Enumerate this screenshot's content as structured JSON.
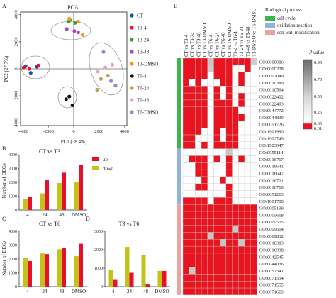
{
  "colors": {
    "up": "#e8112d",
    "down": "#c4c21a",
    "cell_cycle": "#3cb54a",
    "oxidation_reaction": "#8fb4dc",
    "cell_wall": "#eda2a2",
    "sig": "#e8141f",
    "nonsig_white": "#ffffff"
  },
  "panel_A": {
    "letter": "A",
    "chart_data": {
      "type": "scatter",
      "title": "PCA",
      "xlabel": "PC1 (38.4%)",
      "ylabel": "PC2 (27.7%)",
      "xlim": [
        -4200,
        4200
      ],
      "ylim": [
        -4200,
        4200
      ],
      "x_ticks": [
        "-4000",
        "-2000",
        "0",
        "2000",
        "4000"
      ],
      "y_ticks": [
        "-4000",
        "-2000",
        "0",
        "2000",
        "4000"
      ],
      "series": [
        {
          "name": "CT",
          "color": "#1f4fa8",
          "points": [
            [
              -3800,
              200
            ],
            [
              -2900,
              150
            ],
            [
              -3400,
              -300
            ]
          ]
        },
        {
          "name": "T3-4",
          "color": "#e8112d",
          "points": [
            [
              -3950,
              100
            ],
            [
              -3500,
              0
            ],
            [
              -2800,
              250
            ]
          ]
        },
        {
          "name": "T3-24",
          "color": "#2ea043",
          "points": [
            [
              -400,
              3500
            ],
            [
              100,
              3400
            ],
            [
              -300,
              3600
            ]
          ]
        },
        {
          "name": "T3-48",
          "color": "#9b4dbe",
          "points": [
            [
              -550,
              2950
            ],
            [
              350,
              2700
            ],
            [
              50,
              2800
            ]
          ]
        },
        {
          "name": "T3-DMSO",
          "color": "#f39a13",
          "points": [
            [
              700,
              2500
            ],
            [
              -350,
              3700
            ],
            [
              350,
              3500
            ]
          ]
        },
        {
          "name": "T6-4",
          "color": "#111111",
          "points": [
            [
              -600,
              -2250
            ],
            [
              -350,
              -2050
            ],
            [
              -100,
              -2700
            ]
          ]
        },
        {
          "name": "T6-24",
          "color": "#c4a15a",
          "points": [
            [
              2150,
              -750
            ],
            [
              1850,
              -1550
            ],
            [
              2700,
              -500
            ]
          ]
        },
        {
          "name": "T6-48",
          "color": "#f2a1b3",
          "points": [
            [
              2500,
              100
            ],
            [
              3050,
              300
            ],
            [
              1900,
              -200
            ]
          ]
        },
        {
          "name": "T6-DMSO",
          "color": "#9a8ac7",
          "points": [
            [
              2350,
              1250
            ],
            [
              2950,
              -900
            ],
            [
              3300,
              -1250
            ]
          ]
        }
      ]
    }
  },
  "panel_B": {
    "letter": "B",
    "chart_data": {
      "type": "bar",
      "title": "CT vs T3",
      "categories": [
        "4",
        "24",
        "48",
        "DMSO"
      ],
      "series": [
        {
          "name": "up",
          "values": [
            950,
            2150,
            2700,
            3250
          ]
        },
        {
          "name": "down",
          "values": [
            800,
            1200,
            1950,
            2000
          ]
        }
      ],
      "ylabel": "Number of DEGs",
      "ylim": [
        0,
        4000
      ],
      "y_ticks": [
        "0",
        "1000",
        "2000",
        "3000",
        "4000"
      ]
    }
  },
  "panel_C": {
    "letter": "C",
    "chart_data": {
      "type": "bar",
      "title": "CT vs T6",
      "categories": [
        "4",
        "24",
        "48",
        "DMSO"
      ],
      "series": [
        {
          "name": "up",
          "values": [
            1850,
            2350,
            2800,
            3100
          ]
        },
        {
          "name": "down",
          "values": [
            2100,
            2400,
            2700,
            2200
          ]
        }
      ],
      "ylabel": "Number of DEGs",
      "ylim": [
        0,
        4000
      ],
      "y_ticks": [
        "0",
        "1000",
        "2000",
        "3000",
        "4000"
      ]
    }
  },
  "panel_D": {
    "letter": "D",
    "chart_data": {
      "type": "bar",
      "title": "T3 vs T6",
      "categories": [
        "4",
        "24",
        "48",
        "DMSO"
      ],
      "series": [
        {
          "name": "up",
          "values": [
            400,
            750,
            150,
            850
          ]
        },
        {
          "name": "down",
          "values": [
            900,
            2150,
            1700,
            850
          ]
        }
      ],
      "ylim": [
        0,
        3000
      ],
      "y_ticks": [
        "0",
        "1000",
        "2000",
        "3000"
      ]
    }
  },
  "panel_E": {
    "letter": "E",
    "chart_data": {
      "type": "heatmap",
      "columns": [
        "CT vs T3-4",
        "CT vs T3-24",
        "CT vs T3-48",
        "CT vs T3-DMSO",
        "CT vs T6-4",
        "CT vs T6-24",
        "CT vs T6-48",
        "CT vs T6-DMSO",
        "T3-4 vs T6-4",
        "T3-24 vs T6-24",
        "T3-48 vs T6-48",
        "T3-DMSO vs T6-DMSO"
      ],
      "rows": [
        "GO:0000086",
        "GO:0000278",
        "GO:0007049",
        "GO:0010389",
        "GO:0010564",
        "GO:0022402",
        "GO:0022403",
        "GO:0044772",
        "GO:0044839",
        "GO:0051726",
        "GO:1901990",
        "GO:1902749",
        "GO:1903047",
        "GO:0055114",
        "GO:0016717",
        "GO:0016641",
        "GO:0016647",
        "GO:0016701",
        "GO:0016710",
        "GO:0051213",
        "GO:1901700",
        "GO:0005199",
        "GO:0005618",
        "GO:0009505",
        "GO:0009664",
        "GO:0009832",
        "GO:0010383",
        "GO:0016998",
        "GO:0042545",
        "GO:0044036",
        "GO:0052541",
        "GO:0071554",
        "GO:0071555",
        "GO:0071669"
      ],
      "row_groups": [
        {
          "name": "cell cycle",
          "color_key": "cell_cycle",
          "count": 13
        },
        {
          "name": "oxidation reaction",
          "color_key": "oxidation_reaction",
          "count": 8
        },
        {
          "name": "cell wall modification",
          "color_key": "cell_wall",
          "count": 13
        }
      ],
      "legend_title": "Biological process",
      "colorbar_title": "P value",
      "colorbar_ticks": [
        "0.95",
        "0.75",
        "0.50",
        "0.25",
        "0.05",
        "0.01"
      ],
      "p_values": [
        [
          0.01,
          0.01,
          0.01,
          0.01,
          0.6,
          0.01,
          0.01,
          0.01,
          0.01,
          0.01,
          0.01,
          0.7
        ],
        [
          0.01,
          0.01,
          0.01,
          0.01,
          0.7,
          0.01,
          0.01,
          0.01,
          0.95,
          0.95,
          0.01,
          0.95
        ],
        [
          0.01,
          0.01,
          0.01,
          0.01,
          0.95,
          0.01,
          0.01,
          0.01,
          0.95,
          0.01,
          0.95,
          0.95
        ],
        [
          0.01,
          0.95,
          0.01,
          0.95,
          0.95,
          0.95,
          0.01,
          0.01,
          0.95,
          0.01,
          0.95,
          0.95
        ],
        [
          0.01,
          0.01,
          0.01,
          0.01,
          0.95,
          0.01,
          0.95,
          0.01,
          0.95,
          0.95,
          0.95,
          0.95
        ],
        [
          0.01,
          0.01,
          0.01,
          0.01,
          0.95,
          0.01,
          0.95,
          0.01,
          0.95,
          0.01,
          0.95,
          0.95
        ],
        [
          0.01,
          0.01,
          0.01,
          0.01,
          0.95,
          0.01,
          0.01,
          0.01,
          0.95,
          0.01,
          0.95,
          0.95
        ],
        [
          0.01,
          0.01,
          0.01,
          0.01,
          0.95,
          0.01,
          0.01,
          0.01,
          0.01,
          0.95,
          0.95,
          0.95
        ],
        [
          0.01,
          0.01,
          0.01,
          0.01,
          0.95,
          0.01,
          0.01,
          0.01,
          0.01,
          0.01,
          0.95,
          0.95
        ],
        [
          0.01,
          0.01,
          0.01,
          0.01,
          0.95,
          0.01,
          0.01,
          0.01,
          0.01,
          0.95,
          0.95,
          0.95
        ],
        [
          0.01,
          0.01,
          0.01,
          0.95,
          0.95,
          0.01,
          0.95,
          0.01,
          0.01,
          0.95,
          0.95,
          0.95
        ],
        [
          0.01,
          0.01,
          0.95,
          0.95,
          0.95,
          0.01,
          0.95,
          0.01,
          0.01,
          0.95,
          0.95,
          0.95
        ],
        [
          0.01,
          0.01,
          0.95,
          0.01,
          0.95,
          0.01,
          0.01,
          0.01,
          0.01,
          0.95,
          0.95,
          0.95
        ],
        [
          0.95,
          0.95,
          0.95,
          0.95,
          0.95,
          0.95,
          0.95,
          0.5,
          0.95,
          0.95,
          0.95,
          0.95
        ],
        [
          0.95,
          0.01,
          0.01,
          0.01,
          0.95,
          0.01,
          0.95,
          0.01,
          0.95,
          0.01,
          0.95,
          0.95
        ],
        [
          0.95,
          0.95,
          0.01,
          0.01,
          0.95,
          0.95,
          0.95,
          0.01,
          0.95,
          0.95,
          0.95,
          0.95
        ],
        [
          0.95,
          0.95,
          0.01,
          0.01,
          0.95,
          0.95,
          0.95,
          0.01,
          0.95,
          0.95,
          0.95,
          0.95
        ],
        [
          0.95,
          0.95,
          0.95,
          0.01,
          0.95,
          0.95,
          0.01,
          0.95,
          0.95,
          0.95,
          0.95,
          0.95
        ],
        [
          0.95,
          0.95,
          0.01,
          0.01,
          0.95,
          0.95,
          0.95,
          0.01,
          0.95,
          0.95,
          0.95,
          0.95
        ],
        [
          0.95,
          0.95,
          0.95,
          0.95,
          0.95,
          0.95,
          0.95,
          0.01,
          0.95,
          0.95,
          0.95,
          0.95
        ],
        [
          0.01,
          0.01,
          0.01,
          0.01,
          0.95,
          0.01,
          0.01,
          0.01,
          0.95,
          0.95,
          0.95,
          0.95
        ],
        [
          0.01,
          0.01,
          0.01,
          0.01,
          0.01,
          0.01,
          0.01,
          0.01,
          0.01,
          0.01,
          0.01,
          0.01
        ],
        [
          0.01,
          0.01,
          0.01,
          0.01,
          0.01,
          0.01,
          0.01,
          0.01,
          0.01,
          0.01,
          0.01,
          0.01
        ],
        [
          0.01,
          0.01,
          0.01,
          0.01,
          0.01,
          0.01,
          0.01,
          0.01,
          0.01,
          0.01,
          0.01,
          0.01
        ],
        [
          0.01,
          0.01,
          0.01,
          0.01,
          0.01,
          0.01,
          0.01,
          0.01,
          0.5,
          0.01,
          0.01,
          0.01
        ],
        [
          0.01,
          0.01,
          0.01,
          0.01,
          0.5,
          0.01,
          0.01,
          0.01,
          0.01,
          0.01,
          0.01,
          0.01
        ],
        [
          0.01,
          0.01,
          0.01,
          0.01,
          0.01,
          0.01,
          0.5,
          0.01,
          0.01,
          0.5,
          0.01,
          0.01
        ],
        [
          0.01,
          0.01,
          0.01,
          0.01,
          0.01,
          0.01,
          0.01,
          0.01,
          0.01,
          0.01,
          0.01,
          0.01
        ],
        [
          0.01,
          0.01,
          0.01,
          0.01,
          0.01,
          0.01,
          0.01,
          0.01,
          0.01,
          0.01,
          0.01,
          0.01
        ],
        [
          0.01,
          0.01,
          0.01,
          0.01,
          0.01,
          0.01,
          0.01,
          0.01,
          0.01,
          0.01,
          0.01,
          0.01
        ],
        [
          0.01,
          0.5,
          0.01,
          0.01,
          0.01,
          0.01,
          0.01,
          0.01,
          0.01,
          0.01,
          0.01,
          0.01
        ],
        [
          0.01,
          0.01,
          0.01,
          0.01,
          0.01,
          0.01,
          0.01,
          0.01,
          0.01,
          0.01,
          0.01,
          0.01
        ],
        [
          0.01,
          0.01,
          0.01,
          0.01,
          0.01,
          0.01,
          0.01,
          0.01,
          0.01,
          0.01,
          0.01,
          0.01
        ],
        [
          0.01,
          0.01,
          0.01,
          0.01,
          0.01,
          0.01,
          0.01,
          0.01,
          0.01,
          0.01,
          0.01,
          0.01
        ]
      ]
    }
  }
}
